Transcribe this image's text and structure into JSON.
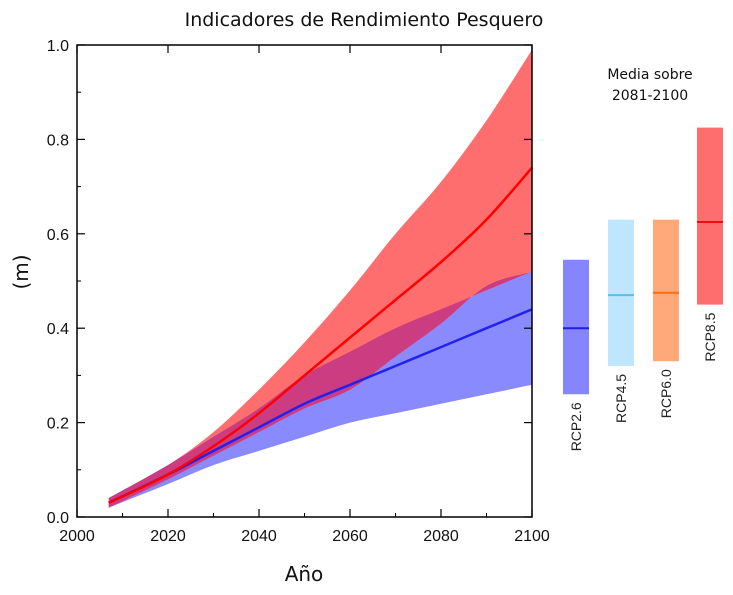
{
  "chart_data": {
    "type": "area",
    "title": "Indicadores de Rendimiento Pesquero",
    "xlabel": "Año",
    "ylabel": "(m)",
    "xlim": [
      2000,
      2100
    ],
    "ylim": [
      0.0,
      1.0
    ],
    "x_ticks": [
      2000,
      2020,
      2040,
      2060,
      2080,
      2100
    ],
    "y_ticks": [
      "0.0",
      "0.2",
      "0.4",
      "0.6",
      "0.8",
      "1.0"
    ],
    "x": [
      2007,
      2020,
      2030,
      2040,
      2050,
      2060,
      2070,
      2080,
      2090,
      2100
    ],
    "series": [
      {
        "color": "#ff0000",
        "band_color": "#ff6e6e",
        "mean": [
          0.03,
          0.09,
          0.15,
          0.22,
          0.3,
          0.38,
          0.46,
          0.54,
          0.63,
          0.74
        ],
        "lower": [
          0.02,
          0.08,
          0.13,
          0.18,
          0.23,
          0.27,
          0.34,
          0.41,
          0.49,
          0.52
        ],
        "upper": [
          0.04,
          0.11,
          0.18,
          0.27,
          0.37,
          0.48,
          0.6,
          0.71,
          0.84,
          0.99
        ]
      },
      {
        "color": "#2222ee",
        "band_color": "#8a8aff",
        "mean": [
          0.03,
          0.09,
          0.14,
          0.19,
          0.24,
          0.28,
          0.32,
          0.36,
          0.4,
          0.44
        ],
        "lower": [
          0.02,
          0.07,
          0.11,
          0.14,
          0.17,
          0.2,
          0.22,
          0.24,
          0.26,
          0.28
        ],
        "upper": [
          0.04,
          0.11,
          0.17,
          0.23,
          0.3,
          0.35,
          0.4,
          0.44,
          0.48,
          0.52
        ]
      }
    ],
    "overlap_color": "#cc3c80",
    "panel_title": "Media sobre\n2081-2100",
    "panel_title_lines": [
      "Media sobre",
      "2081-2100"
    ],
    "panel": [
      {
        "name": "RCP2.6",
        "low": 0.26,
        "high": 0.545,
        "mean": 0.4,
        "bar_color": "#8585ff",
        "line_color": "#1f1fe0"
      },
      {
        "name": "RCP4.5",
        "low": 0.32,
        "high": 0.63,
        "mean": 0.47,
        "bar_color": "#bfe6ff",
        "line_color": "#58c0f0"
      },
      {
        "name": "RCP6.0",
        "low": 0.33,
        "high": 0.63,
        "mean": 0.475,
        "bar_color": "#ffa97a",
        "line_color": "#ff6a10"
      },
      {
        "name": "RCP8.5",
        "low": 0.45,
        "high": 0.825,
        "mean": 0.625,
        "bar_color": "#ff6e6e",
        "line_color": "#ee1010"
      }
    ]
  }
}
